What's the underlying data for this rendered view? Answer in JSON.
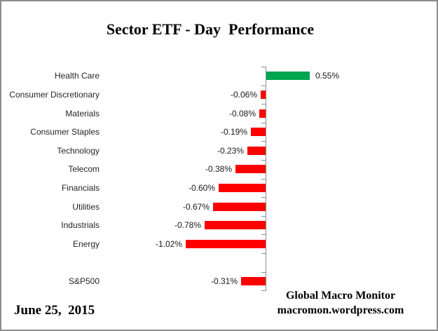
{
  "chart_data": {
    "type": "bar",
    "orientation": "horizontal",
    "title": "Sector ETF - Day  Performance",
    "categories": [
      "Health Care",
      "Consumer Discretionary",
      "Materials",
      "Consumer Staples",
      "Technology",
      "Telecom",
      "Financials",
      "Utilities",
      "Industrials",
      "Energy",
      "",
      "S&P500"
    ],
    "values": [
      0.55,
      -0.06,
      -0.08,
      -0.19,
      -0.23,
      -0.38,
      -0.6,
      -0.67,
      -0.78,
      -1.02,
      null,
      -0.31
    ],
    "value_labels": [
      "0.55%",
      "-0.06%",
      "-0.08%",
      "-0.19%",
      "-0.23%",
      "-0.38%",
      "-0.60%",
      "-0.67%",
      "-0.78%",
      "-1.02%",
      "",
      "-0.31%"
    ],
    "xlabel": "",
    "ylabel": "",
    "xlim": [
      -1.2,
      0.8
    ],
    "grid": false,
    "legend": false,
    "positive_color": "#00A550",
    "negative_color": "#FF0000",
    "axis_color": "#8d8d8d"
  },
  "footer": {
    "date": "June 25,  2015",
    "credit_line1": "Global Macro Monitor",
    "credit_line2": "macromon.wordpress.com"
  }
}
